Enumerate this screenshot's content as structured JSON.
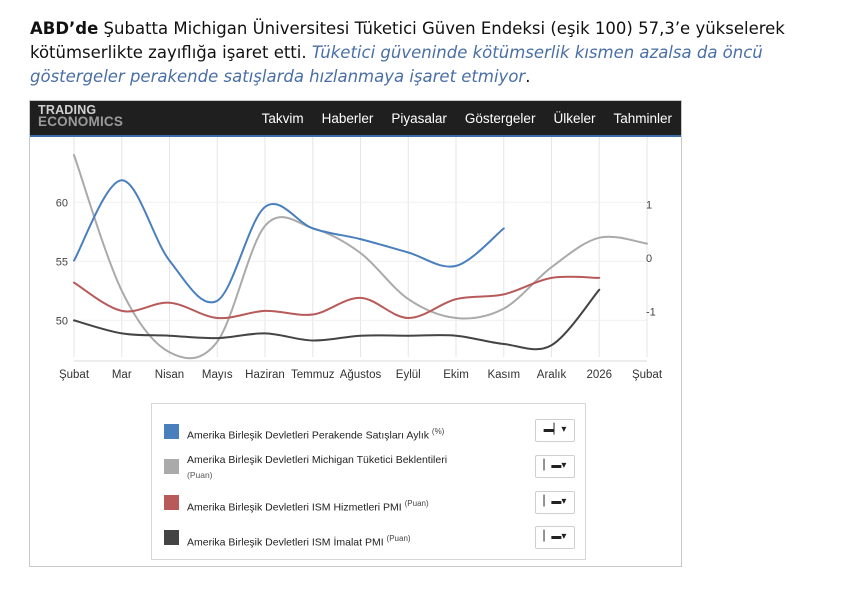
{
  "headline": {
    "bold": "ABD’de",
    "normal": " Şubatta Michigan Üniversitesi Tüketici Güven Endeksi (eşik 100) 57,3’e yükselerek kötümserlikte zayıflığa işaret etti. ",
    "italic": "Tüketici güveninde kötümserlik kısmen azalsa da öncü göstergeler perakende satışlarda hızlanmaya işaret etmiyor",
    "end": "."
  },
  "logo": {
    "line1": "TRADING",
    "line2": "ECONOMICS"
  },
  "nav": [
    "Takvim",
    "Haberler",
    "Piyasalar",
    "Göstergeler",
    "Ülkeler",
    "Tahminler"
  ],
  "chart_data": {
    "type": "line",
    "x_labels": [
      "Şubat",
      "Mar",
      "Nisan",
      "Mayıs",
      "Haziran",
      "Temmuz",
      "Ağustos",
      "Eylül",
      "Ekim",
      "Kasım",
      "Aralık",
      "2026",
      "Şubat"
    ],
    "left_axis": {
      "ticks": [
        "60",
        "55",
        "50"
      ],
      "values": [
        60,
        55,
        50
      ],
      "range": [
        46.9,
        64
      ]
    },
    "right_axis": {
      "ticks": [
        "1",
        "0",
        "-1"
      ],
      "values": [
        1,
        0,
        -1
      ],
      "range": [
        -1.85,
        1.92
      ]
    },
    "grid": true,
    "series": [
      {
        "name": "Amerika Birleşik Devletleri Perakende Satışları Aylık",
        "unit": "(%)",
        "axis": "right",
        "color": "#4a7fbd",
        "points": [
          [
            0,
            -0.05
          ],
          [
            1,
            1.45
          ],
          [
            2,
            -0.05
          ],
          [
            3,
            -0.8
          ],
          [
            4,
            0.95
          ],
          [
            5,
            0.55
          ],
          [
            6,
            0.35
          ],
          [
            7,
            0.1
          ],
          [
            8,
            -0.15
          ],
          [
            9,
            0.55
          ]
        ]
      },
      {
        "name": "Amerika Birleşik Devletleri Michigan Tüketici Beklentileri",
        "unit": "(Puan)",
        "axis": "left",
        "color": "#aaaaaa",
        "points": [
          [
            0,
            64
          ],
          [
            1,
            52.5
          ],
          [
            2,
            47.3
          ],
          [
            3,
            48.2
          ],
          [
            4,
            58
          ],
          [
            5,
            57.8
          ],
          [
            6,
            55.7
          ],
          [
            7,
            51.8
          ],
          [
            8,
            50.2
          ],
          [
            9,
            51
          ],
          [
            10,
            54.5
          ],
          [
            11,
            57
          ],
          [
            12,
            56.5
          ]
        ]
      },
      {
        "name": "Amerika Birleşik Devletleri ISM Hizmetleri PMI",
        "unit": "(Puan)",
        "axis": "left",
        "color": "#b85a5a",
        "points": [
          [
            0,
            53.2
          ],
          [
            1,
            50.8
          ],
          [
            2,
            51.5
          ],
          [
            3,
            50.2
          ],
          [
            4,
            50.8
          ],
          [
            5,
            50.5
          ],
          [
            6,
            51.9
          ],
          [
            7,
            50.2
          ],
          [
            8,
            51.8
          ],
          [
            9,
            52.2
          ],
          [
            10,
            53.6
          ],
          [
            11,
            53.6
          ]
        ]
      },
      {
        "name": "Amerika Birleşik Devletleri ISM İmalat PMI",
        "unit": "(Puan)",
        "axis": "left",
        "color": "#444444",
        "points": [
          [
            0,
            50
          ],
          [
            1,
            48.9
          ],
          [
            2,
            48.7
          ],
          [
            3,
            48.5
          ],
          [
            4,
            48.9
          ],
          [
            5,
            48.3
          ],
          [
            6,
            48.7
          ],
          [
            7,
            48.7
          ],
          [
            8,
            48.7
          ],
          [
            9,
            48.0
          ],
          [
            10,
            47.9
          ],
          [
            11,
            52.6
          ]
        ]
      }
    ]
  },
  "legend": {
    "rows": [
      {
        "label": "Amerika Birleşik Devletleri Perakende Satışları Aylık",
        "unit": "(%)",
        "sub": "",
        "color": "#4a7fbd",
        "button": "▬▏▾"
      },
      {
        "label": "Amerika Birleşik Devletleri Michigan Tüketici Beklentileri",
        "unit": "",
        "sub": "(Puan)",
        "color": "#aaaaaa",
        "button": "▏▬▾"
      },
      {
        "label": "Amerika Birleşik Devletleri ISM Hizmetleri PMI",
        "unit": "(Puan)",
        "sub": "",
        "color": "#b85a5a",
        "button": "▏▬▾"
      },
      {
        "label": "Amerika Birleşik Devletleri ISM İmalat PMI",
        "unit": "(Puan)",
        "sub": "",
        "color": "#444444",
        "button": "▏▬▾"
      }
    ]
  }
}
